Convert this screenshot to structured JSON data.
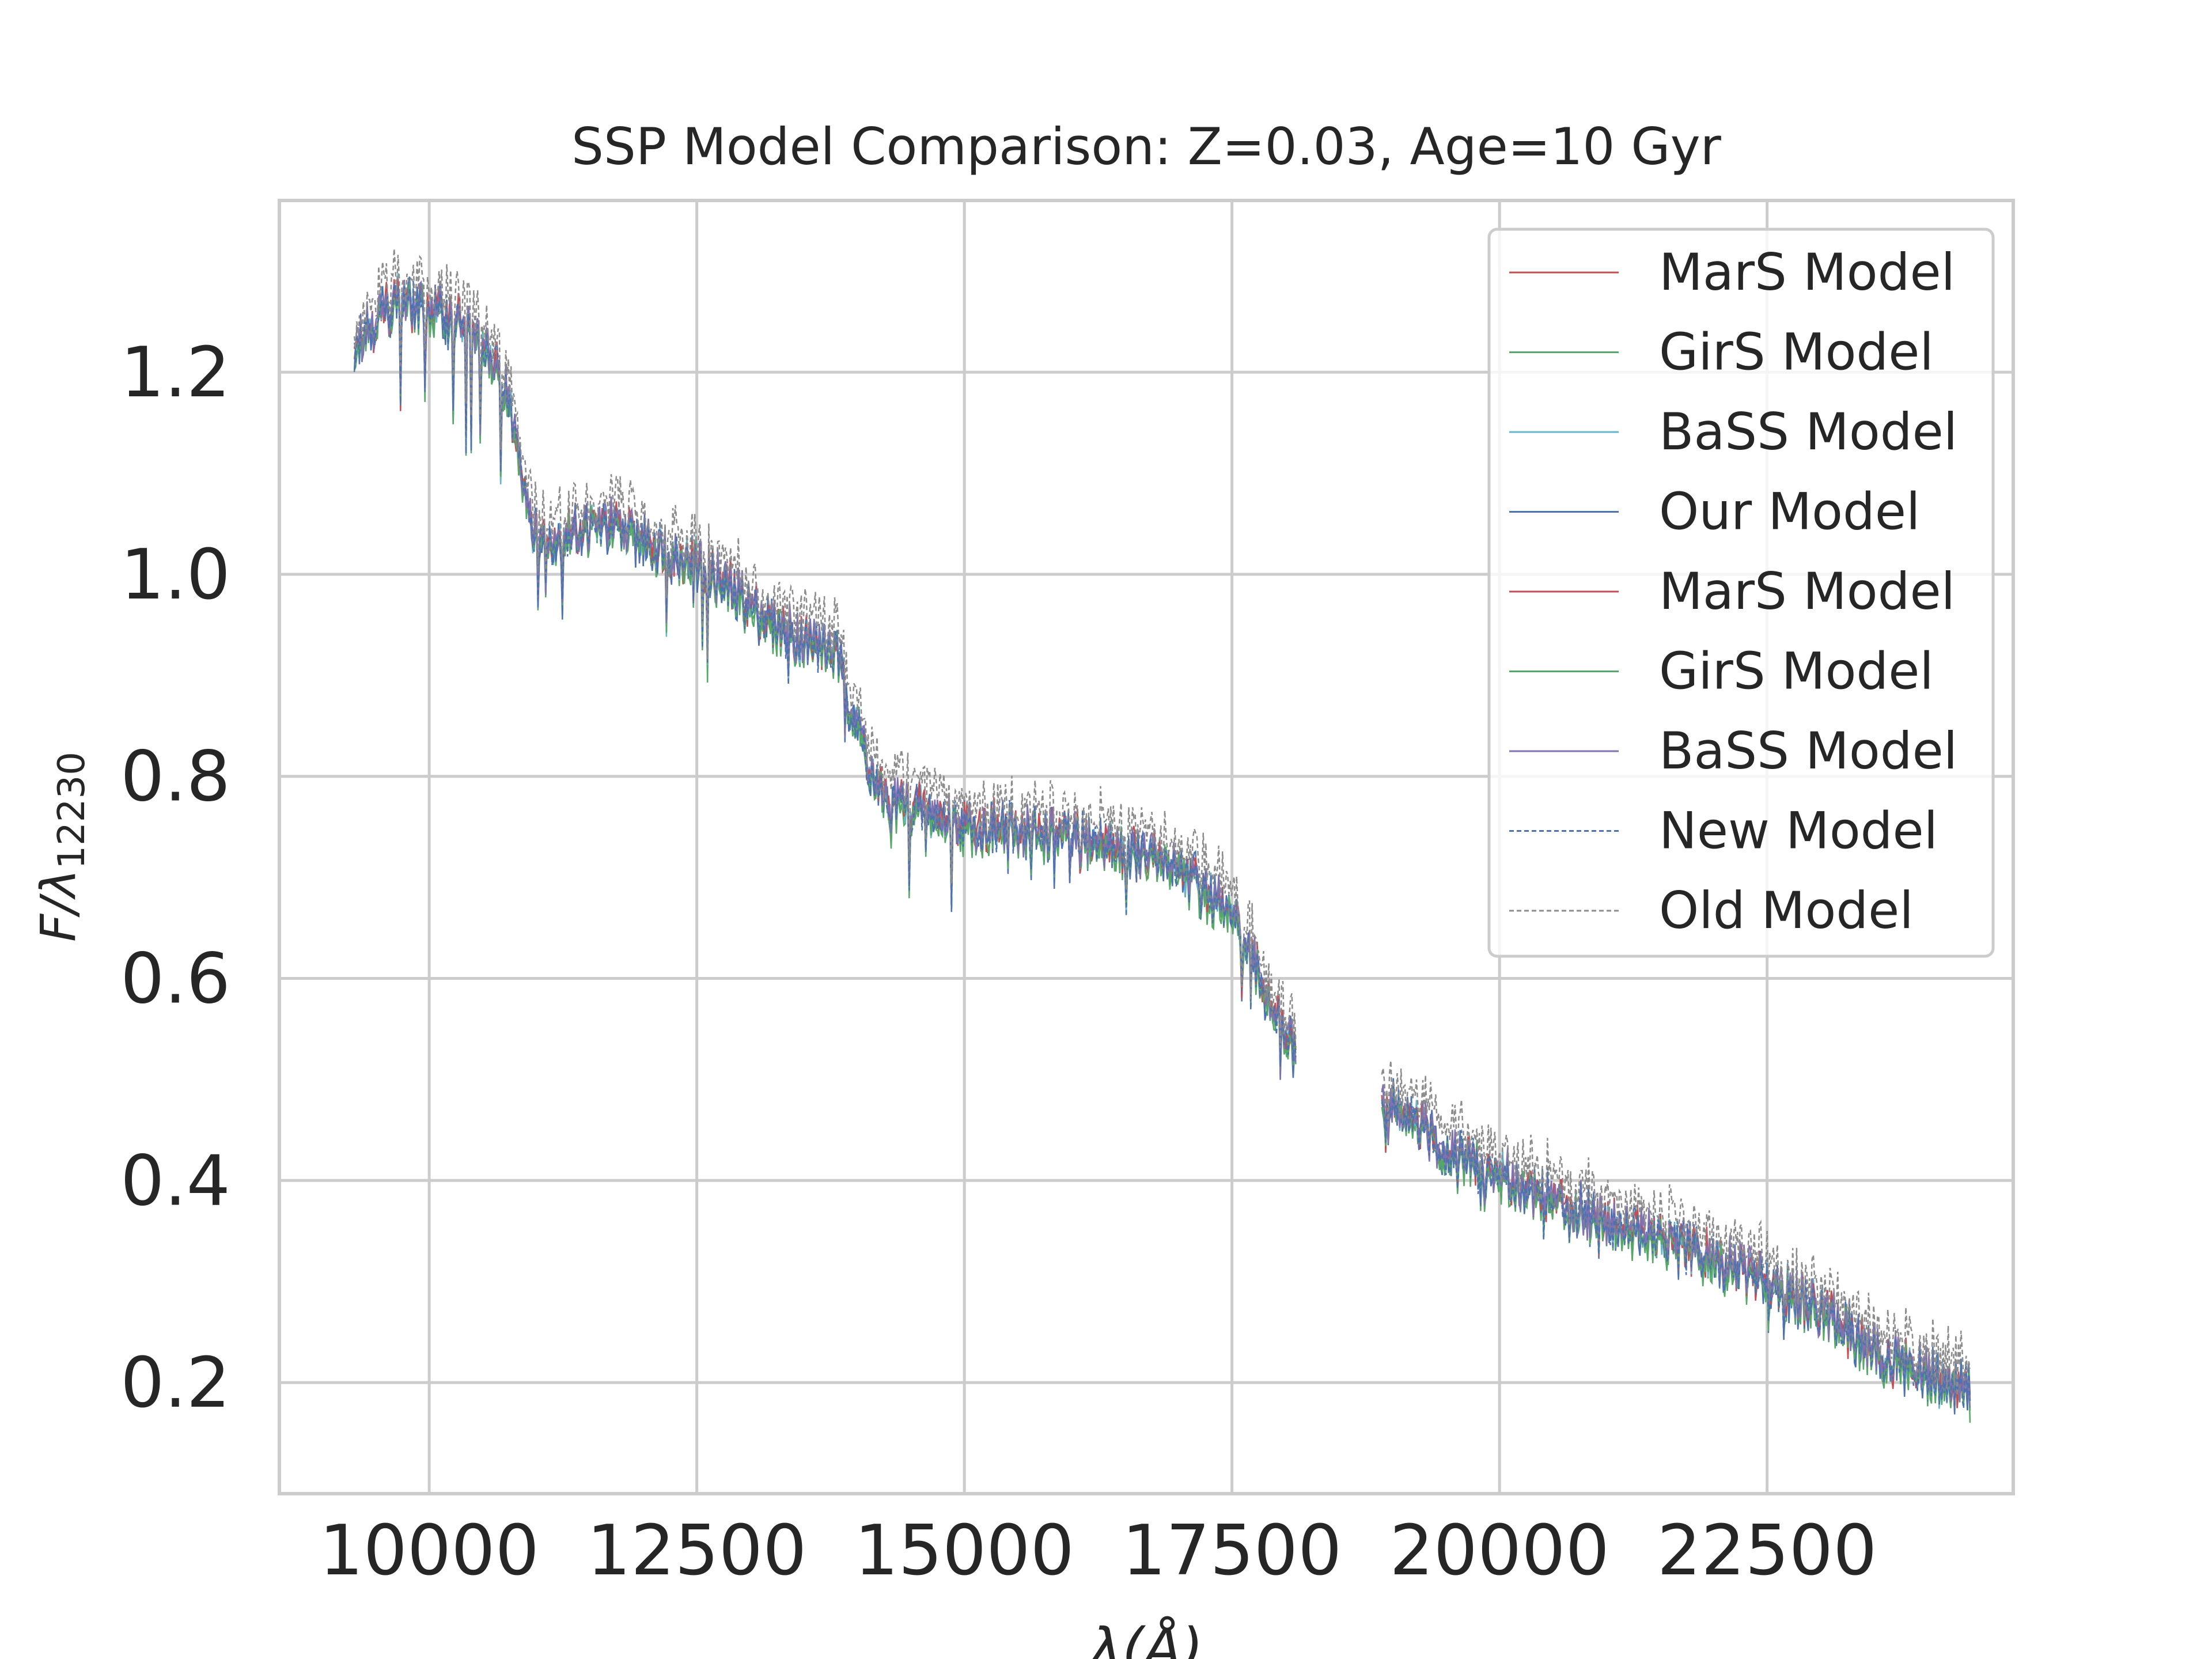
{
  "chart_data": {
    "type": "line",
    "title": "SSP Model Comparison: Z=0.03, Age=10 Gyr",
    "xlabel": "λ(Å)",
    "ylabel_main": "F/λ",
    "ylabel_sub": "12230",
    "xlim": [
      8600,
      24800
    ],
    "ylim": [
      0.09,
      1.37
    ],
    "x_ticks": [
      10000,
      12500,
      15000,
      17500,
      20000,
      22500
    ],
    "x_tick_labels": [
      "10000",
      "12500",
      "15000",
      "17500",
      "20000",
      "22500"
    ],
    "y_ticks": [
      0.2,
      0.4,
      0.6,
      0.8,
      1.0,
      1.2
    ],
    "y_tick_labels": [
      "0.2",
      "0.4",
      "0.6",
      "0.8",
      "1.0",
      "1.2"
    ],
    "grid": true,
    "legend_position": "top-right",
    "gap": [
      18100,
      18900
    ],
    "spectrum_anchors": [
      [
        9300,
        1.23
      ],
      [
        9700,
        1.27
      ],
      [
        10300,
        1.25
      ],
      [
        10700,
        1.19
      ],
      [
        11000,
        1.03
      ],
      [
        11600,
        1.05
      ],
      [
        12500,
        1.01
      ],
      [
        13200,
        0.95
      ],
      [
        13800,
        0.92
      ],
      [
        14200,
        0.78
      ],
      [
        15000,
        0.75
      ],
      [
        16000,
        0.74
      ],
      [
        17000,
        0.71
      ],
      [
        17500,
        0.66
      ],
      [
        18100,
        0.52
      ],
      [
        18900,
        0.48
      ],
      [
        19500,
        0.43
      ],
      [
        20500,
        0.38
      ],
      [
        21500,
        0.34
      ],
      [
        22500,
        0.3
      ],
      [
        23000,
        0.27
      ],
      [
        23500,
        0.23
      ],
      [
        24400,
        0.19
      ]
    ],
    "series": [
      {
        "name": "MarS Model",
        "color": "#c44e52",
        "style": "solid",
        "offset": 0.0,
        "noise": 0.012
      },
      {
        "name": "GirS Model",
        "color": "#55a868",
        "style": "solid",
        "offset": -0.004,
        "noise": 0.012
      },
      {
        "name": "BaSS Model",
        "color": "#64b5cd",
        "style": "solid",
        "offset": 0.002,
        "noise": 0.012
      },
      {
        "name": "Our Model",
        "color": "#4c72b0",
        "style": "solid",
        "offset": 0.0,
        "noise": 0.016
      },
      {
        "name": "MarS Model",
        "color": "#c44e52",
        "style": "solid",
        "offset": 0.003,
        "noise": 0.012
      },
      {
        "name": "GirS Model",
        "color": "#55a868",
        "style": "solid",
        "offset": -0.002,
        "noise": 0.012
      },
      {
        "name": "BaSS Model",
        "color": "#8172b2",
        "style": "solid",
        "offset": 0.004,
        "noise": 0.014
      },
      {
        "name": "New Model",
        "color": "#4c72b0",
        "style": "dashed",
        "offset": 0.001,
        "noise": 0.014
      },
      {
        "name": "Old Model",
        "color": "#8c8c8c",
        "style": "dashed",
        "offset": 0.025,
        "noise": 0.02
      }
    ],
    "colors": {
      "grid": "#cccccc",
      "axes_edge": "#cccccc",
      "text": "#262626",
      "legend_edge": "#cccccc"
    }
  }
}
